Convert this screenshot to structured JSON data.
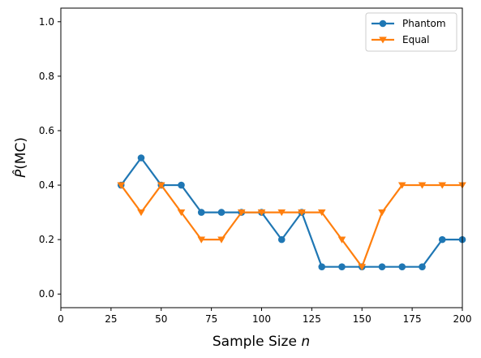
{
  "chart_data": {
    "type": "line",
    "xlabel": "Sample Size",
    "xlabel_var": "n",
    "ylabel_hat": "P̂",
    "ylabel_rest": "(MC)",
    "xlim": [
      0,
      200
    ],
    "ylim": [
      -0.05,
      1.05
    ],
    "xticks": [
      0,
      25,
      50,
      75,
      100,
      125,
      150,
      175,
      200
    ],
    "yticks": [
      0.0,
      0.2,
      0.4,
      0.6,
      0.8,
      1.0
    ],
    "xtick_labels": [
      "0",
      "25",
      "50",
      "75",
      "100",
      "125",
      "150",
      "175",
      "200"
    ],
    "ytick_labels": [
      "0.0",
      "0.2",
      "0.4",
      "0.6",
      "0.8",
      "1.0"
    ],
    "x": [
      30,
      40,
      50,
      60,
      70,
      80,
      90,
      100,
      110,
      120,
      130,
      140,
      150,
      160,
      170,
      180,
      190,
      200
    ],
    "series": [
      {
        "name": "Phantom",
        "color": "#1f77b4",
        "marker": "circle",
        "values": [
          0.4,
          0.5,
          0.4,
          0.4,
          0.3,
          0.3,
          0.3,
          0.3,
          0.2,
          0.3,
          0.1,
          0.1,
          0.1,
          0.1,
          0.1,
          0.1,
          0.2,
          0.2
        ]
      },
      {
        "name": "Equal",
        "color": "#ff7f0e",
        "marker": "triangle-down",
        "values": [
          0.4,
          0.3,
          0.4,
          0.3,
          0.2,
          0.2,
          0.3,
          0.3,
          0.3,
          0.3,
          0.3,
          0.2,
          0.1,
          0.3,
          0.4,
          0.4,
          0.4,
          0.4
        ]
      }
    ],
    "legend_position": "top-right",
    "grid": false
  }
}
